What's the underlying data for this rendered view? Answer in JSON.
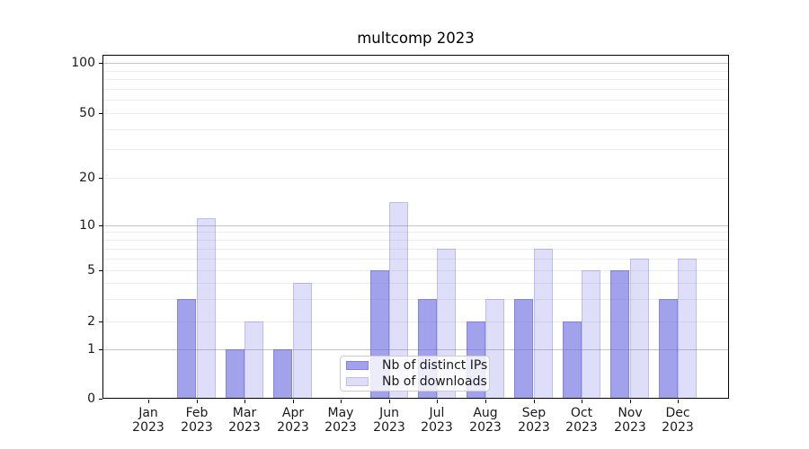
{
  "chart_data": {
    "type": "bar",
    "title": "multcomp 2023",
    "categories": [
      "Jan 2023",
      "Feb 2023",
      "Mar 2023",
      "Apr 2023",
      "May 2023",
      "Jun 2023",
      "Jul 2023",
      "Aug 2023",
      "Sep 2023",
      "Oct 2023",
      "Nov 2023",
      "Dec 2023"
    ],
    "series": [
      {
        "name": "Nb of distinct IPs",
        "values": [
          0,
          3,
          1,
          1,
          0,
          5,
          3,
          2,
          3,
          2,
          5,
          3
        ],
        "fill": "rgba(105,105,225,0.62)",
        "edge": "rgba(95,95,215,0.45)"
      },
      {
        "name": "Nb of downloads",
        "values": [
          0,
          11,
          2,
          4,
          0,
          14,
          7,
          3,
          7,
          5,
          6,
          6
        ],
        "fill": "rgba(105,105,225,0.22)",
        "edge": "rgba(105,105,225,0.28)"
      }
    ],
    "xlabel": "",
    "ylabel": "",
    "yaxis": {
      "scale": "symlog",
      "ylim": [
        0,
        112
      ],
      "tick_values": [
        0,
        1,
        2,
        5,
        10,
        20,
        50,
        100
      ],
      "tick_labels": [
        "0",
        "1",
        "2",
        "5",
        "10",
        "20",
        "50",
        "100"
      ],
      "minor_gridline_values": [
        3,
        4,
        6,
        7,
        8,
        9,
        30,
        40,
        60,
        70,
        80,
        90
      ],
      "decade_values": [
        1,
        10,
        100
      ]
    },
    "grid": true,
    "legend": {
      "position": "lower center",
      "entries": [
        "Nb of distinct IPs",
        "Nb of downloads"
      ]
    },
    "colors": {
      "decade_gridline": "#c4c4c4",
      "minor_gridline": "#ececec",
      "axis_frame": "#000000",
      "text": "#1a1a1a"
    }
  }
}
